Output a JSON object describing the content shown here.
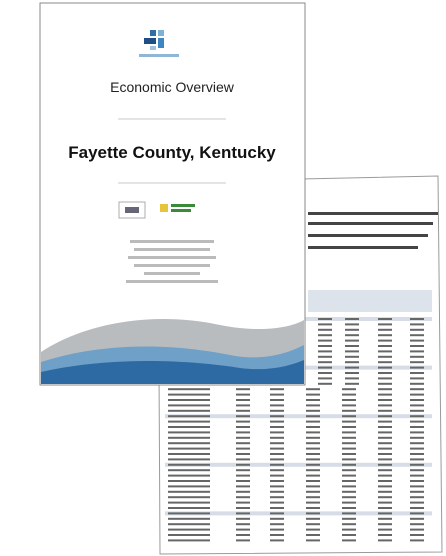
{
  "cover": {
    "title": "Economic Overview",
    "subtitle": "Fayette County, Kentucky"
  }
}
